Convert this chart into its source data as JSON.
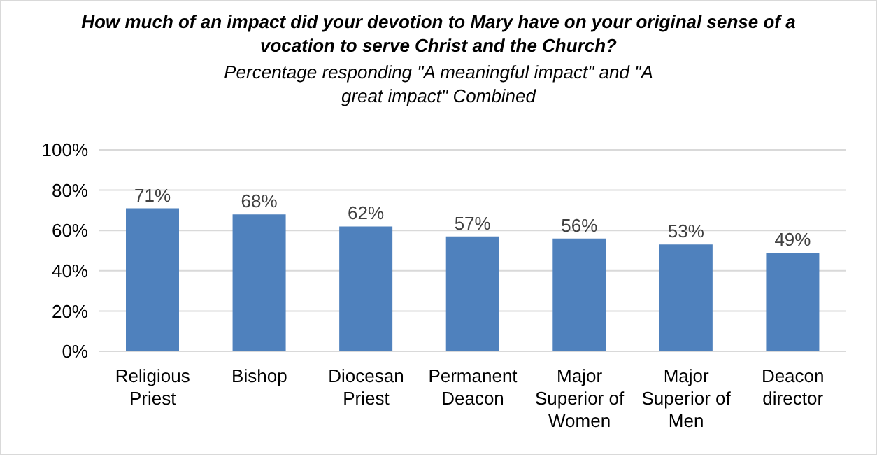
{
  "chart_data": {
    "type": "bar",
    "title": "How much of an impact did your devotion to Mary have on your original sense of a vocation to serve Christ and the Church?",
    "subtitle": "Percentage responding \"A meaningful impact\" and \"A great impact\" Combined",
    "categories": [
      "Religious Priest",
      "Bishop",
      "Diocesan Priest",
      "Permanent Deacon",
      "Major Superior of Women",
      "Major Superior of Men",
      "Deacon director"
    ],
    "values": [
      71,
      68,
      62,
      57,
      56,
      53,
      49
    ],
    "value_labels": [
      "71%",
      "68%",
      "62%",
      "57%",
      "56%",
      "53%",
      "49%"
    ],
    "color": "#4f81bd",
    "ylim": [
      0,
      100
    ],
    "yticks": [
      {
        "value": 0,
        "label": "0%"
      },
      {
        "value": 20,
        "label": "20%"
      },
      {
        "value": 40,
        "label": "40%"
      },
      {
        "value": 60,
        "label": "60%"
      },
      {
        "value": 80,
        "label": "80%"
      },
      {
        "value": 100,
        "label": "100%"
      }
    ],
    "grid": "y",
    "legend": false
  }
}
